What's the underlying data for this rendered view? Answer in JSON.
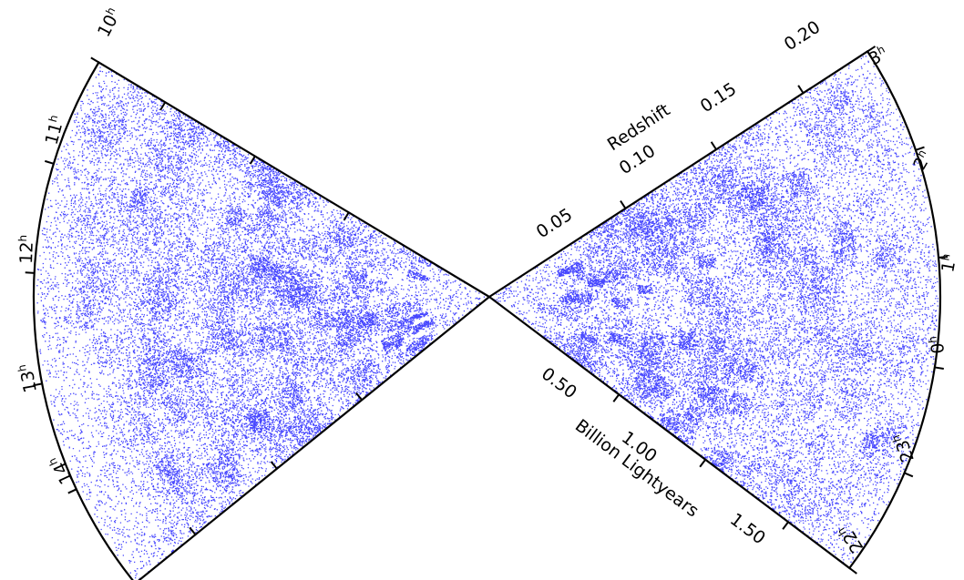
{
  "left_wedge": {
    "hour_labels": [
      {
        "h": "10",
        "unit": "h"
      },
      {
        "h": "11",
        "unit": "h"
      },
      {
        "h": "12",
        "unit": "h"
      },
      {
        "h": "13",
        "unit": "h"
      },
      {
        "h": "14",
        "unit": "h"
      }
    ]
  },
  "right_wedge": {
    "hour_labels": [
      {
        "h": "3",
        "unit": "h"
      },
      {
        "h": "2",
        "unit": "h"
      },
      {
        "h": "1",
        "unit": "h"
      },
      {
        "h": "0",
        "unit": "h"
      },
      {
        "h": "23",
        "unit": "h"
      },
      {
        "h": "22",
        "unit": "h"
      }
    ]
  },
  "redshift_axis": {
    "title": "Redshift",
    "ticks": [
      "0.05",
      "0.10",
      "0.15",
      "0.20"
    ]
  },
  "distance_axis": {
    "title": "Billion Lightyears",
    "ticks": [
      "0.50",
      "1.00",
      "1.50"
    ]
  },
  "colors": {
    "galaxy_points": "#1a1aff",
    "outline": "#000000",
    "background": "#ffffff"
  }
}
